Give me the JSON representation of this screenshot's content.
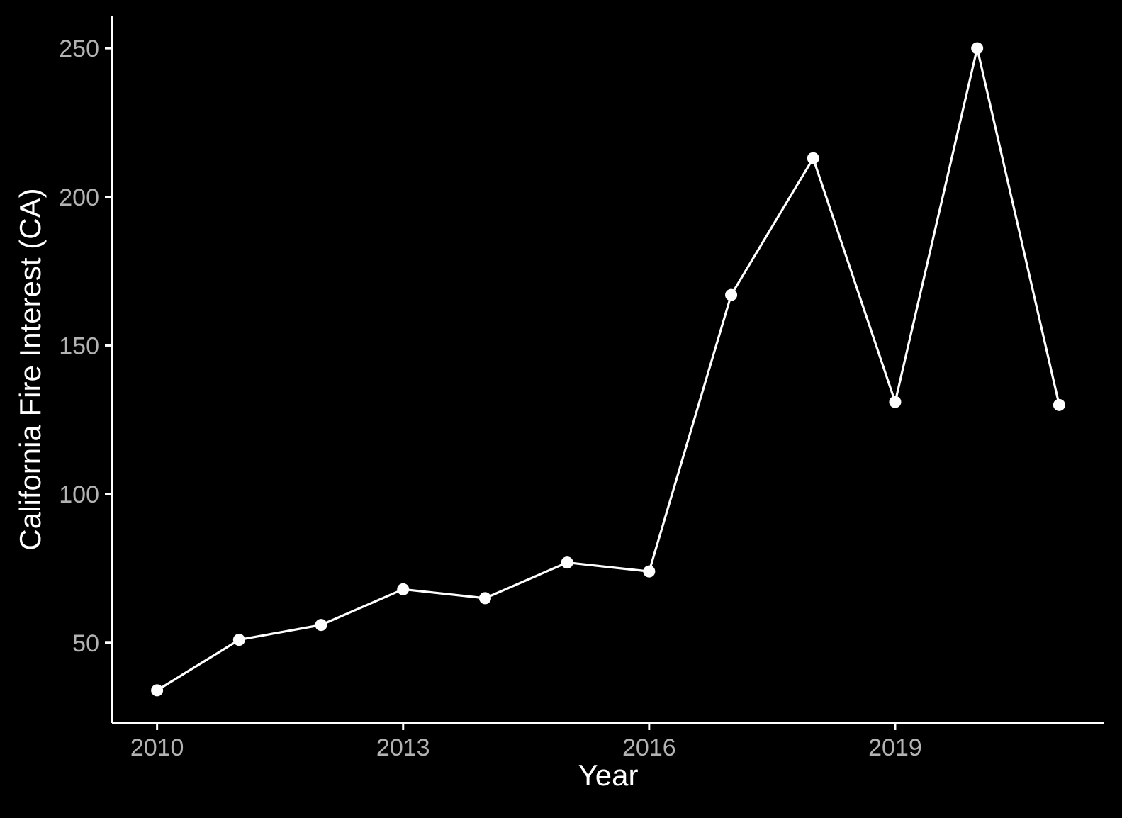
{
  "chart_data": {
    "type": "line",
    "title": "",
    "xlabel": "Year",
    "ylabel": "California Fire Interest (CA)",
    "x": [
      2010,
      2011,
      2012,
      2013,
      2014,
      2015,
      2016,
      2017,
      2018,
      2019,
      2020,
      2021
    ],
    "series": [
      {
        "values": [
          34,
          51,
          56,
          68,
          65,
          77,
          74,
          167,
          213,
          131,
          250,
          130
        ],
        "color": "#ffffff"
      }
    ],
    "xlim": [
      2009.45,
      2021.55
    ],
    "ylim": [
      23,
      261
    ],
    "xticks": [
      2010,
      2013,
      2016,
      2019
    ],
    "yticks": [
      50,
      100,
      150,
      200,
      250
    ],
    "grid": false,
    "legend": "none",
    "background": "#000000",
    "tick_label_color": "#b3b3b3"
  }
}
